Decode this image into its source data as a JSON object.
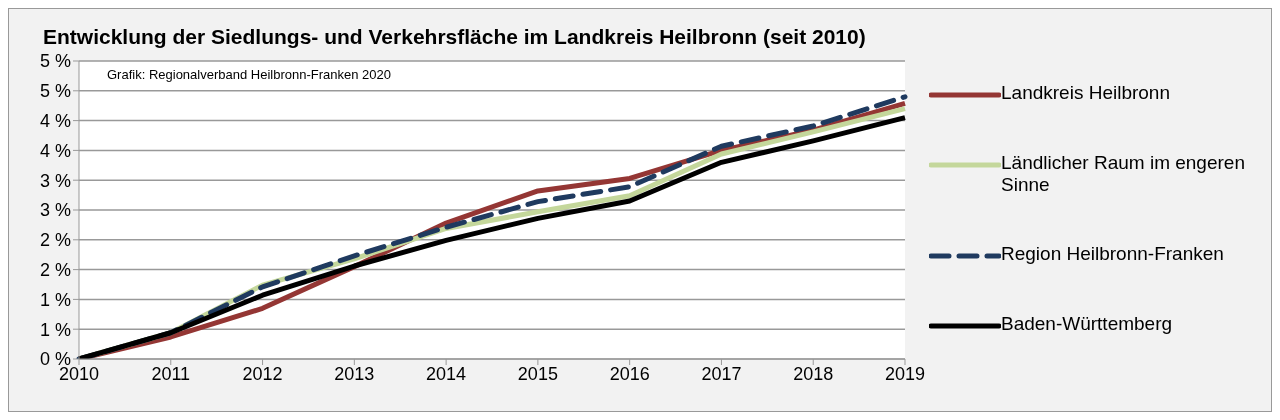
{
  "chart_data": {
    "type": "line",
    "title": "Entwicklung der Siedlungs- und Verkehrsfläche im Landkreis Heilbronn (seit 2010)",
    "annotations": [
      "Grafik: Regionalverband Heilbronn-Franken 2020"
    ],
    "categories": [
      "2010",
      "2011",
      "2012",
      "2013",
      "2014",
      "2015",
      "2016",
      "2017",
      "2018",
      "2019"
    ],
    "series": [
      {
        "name": "Landkreis Heilbronn",
        "color": "#943634",
        "line_style": "solid",
        "values": [
          0,
          0.37,
          0.85,
          1.55,
          2.28,
          2.82,
          3.03,
          3.5,
          3.84,
          4.29
        ]
      },
      {
        "name": "Ländlicher Raum im engeren Sinne",
        "color": "#c4d79b",
        "line_style": "solid",
        "values": [
          0,
          0.44,
          1.24,
          1.68,
          2.19,
          2.47,
          2.74,
          3.44,
          3.81,
          4.2
        ]
      },
      {
        "name": "Region Heilbronn-Franken",
        "color": "#1f3a5f",
        "line_style": "dashed",
        "values": [
          0,
          0.44,
          1.21,
          1.73,
          2.21,
          2.64,
          2.89,
          3.57,
          3.91,
          4.4
        ]
      },
      {
        "name": "Baden-Württemberg",
        "color": "#000000",
        "line_style": "solid",
        "values": [
          0,
          0.44,
          1.07,
          1.56,
          1.99,
          2.36,
          2.65,
          3.3,
          3.66,
          4.05
        ]
      }
    ],
    "ylim": [
      0,
      5
    ],
    "yticks": [
      {
        "value": 0,
        "label": "0 %"
      },
      {
        "value": 0.5,
        "label": "1 %"
      },
      {
        "value": 1,
        "label": "1 %"
      },
      {
        "value": 1.5,
        "label": "2 %"
      },
      {
        "value": 2,
        "label": "2 %"
      },
      {
        "value": 2.5,
        "label": "3 %"
      },
      {
        "value": 3,
        "label": "3 %"
      },
      {
        "value": 3.5,
        "label": "4 %"
      },
      {
        "value": 4,
        "label": "4 %"
      },
      {
        "value": 4.5,
        "label": "5 %"
      },
      {
        "value": 5,
        "label": "5 %"
      }
    ],
    "grid": "y",
    "legend": "right",
    "marker": "none"
  }
}
